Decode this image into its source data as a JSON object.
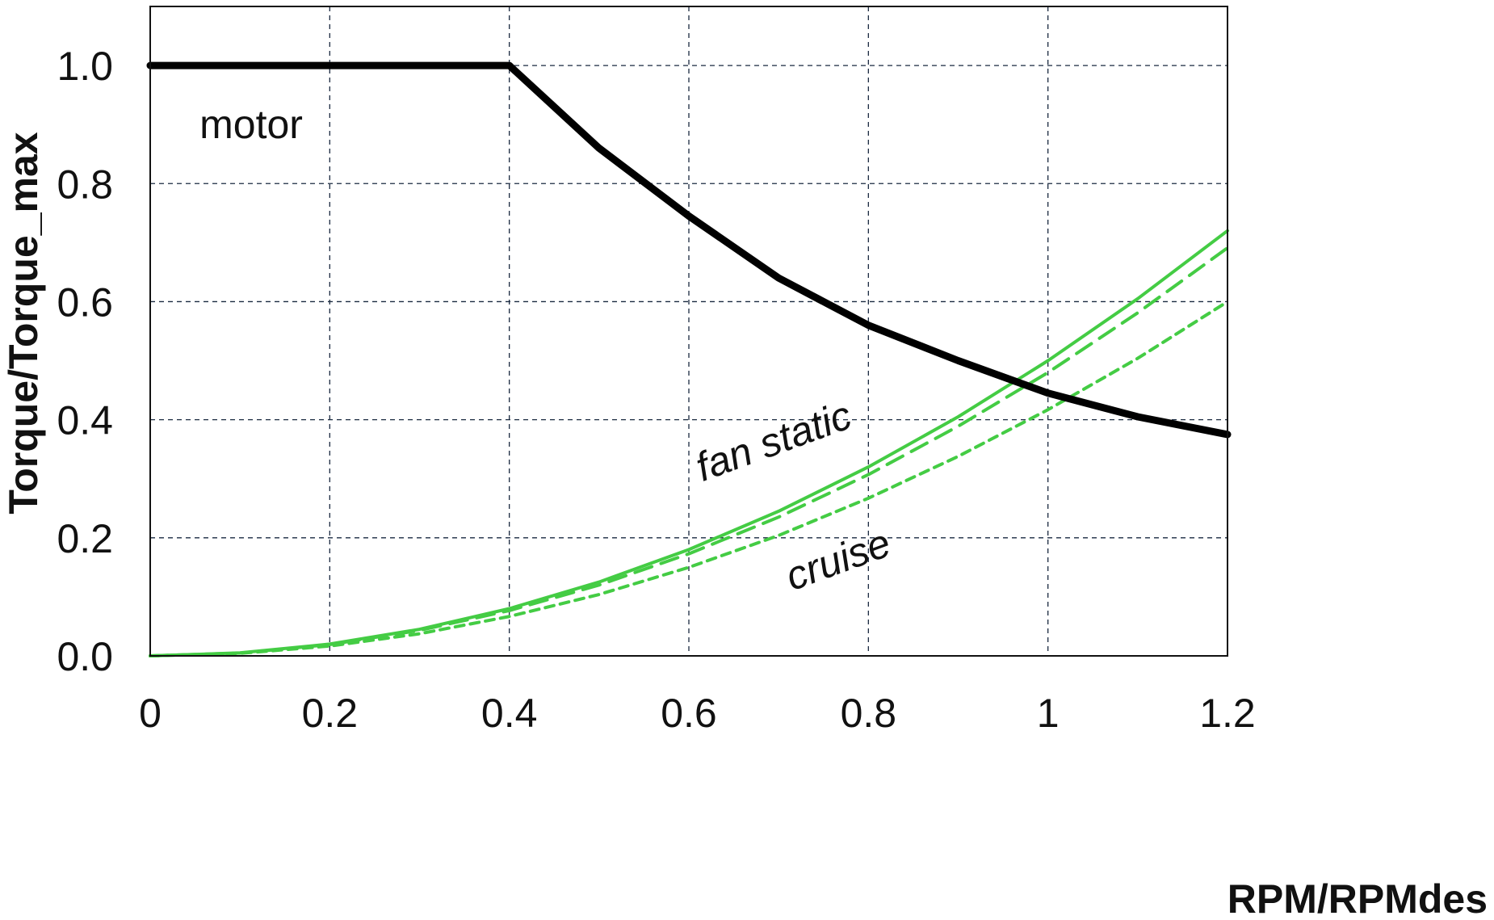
{
  "chart_data": {
    "type": "line",
    "title": "",
    "xlabel": "RPM/RPMdes",
    "ylabel": "Torque/Torque_max",
    "xlim": [
      0,
      1.2
    ],
    "ylim": [
      0,
      1.1
    ],
    "x_ticks": [
      "0",
      "0.2",
      "0.4",
      "0.6",
      "0.8",
      "1",
      "1.2"
    ],
    "y_ticks": [
      "0.0",
      "0.2",
      "0.4",
      "0.6",
      "0.8",
      "1.0"
    ],
    "grid": true,
    "colors": {
      "motor": "#000000",
      "fan": "#44cc44"
    },
    "series": [
      {
        "line": "motor",
        "style": "solid-thick",
        "x": [
          0,
          0.4,
          0.5,
          0.6,
          0.7,
          0.8,
          0.9,
          1.0,
          1.1,
          1.2
        ],
        "y": [
          1.0,
          1.0,
          0.86,
          0.745,
          0.64,
          0.56,
          0.5,
          0.445,
          0.405,
          0.375
        ]
      },
      {
        "line": "fan-solid",
        "style": "solid",
        "x": [
          0,
          0.1,
          0.2,
          0.3,
          0.4,
          0.5,
          0.6,
          0.7,
          0.8,
          0.9,
          1.0,
          1.1,
          1.2
        ],
        "y": [
          0,
          0.005,
          0.02,
          0.045,
          0.08,
          0.125,
          0.18,
          0.245,
          0.32,
          0.405,
          0.5,
          0.605,
          0.72
        ]
      },
      {
        "line": "fan-long-dash",
        "style": "long-dash",
        "x": [
          0,
          0.1,
          0.2,
          0.3,
          0.4,
          0.5,
          0.6,
          0.7,
          0.8,
          0.9,
          1.0,
          1.1,
          1.2
        ],
        "y": [
          0,
          0.0048,
          0.0192,
          0.0432,
          0.0768,
          0.12,
          0.173,
          0.235,
          0.307,
          0.389,
          0.48,
          0.581,
          0.691
        ]
      },
      {
        "line": "fan-short-dash",
        "style": "short-dash",
        "x": [
          0,
          0.1,
          0.2,
          0.3,
          0.4,
          0.5,
          0.6,
          0.7,
          0.8,
          0.9,
          1.0,
          1.1,
          1.2
        ],
        "y": [
          0,
          0.0042,
          0.0167,
          0.0375,
          0.0667,
          0.104,
          0.15,
          0.204,
          0.267,
          0.338,
          0.417,
          0.504,
          0.6
        ]
      }
    ],
    "annotations": {
      "motor": {
        "text": "motor",
        "x": 0.055,
        "y": 0.9
      },
      "fan_static": {
        "text": "fan static",
        "x": 0.615,
        "y": 0.295
      },
      "cruise": {
        "text": "cruise",
        "x": 0.715,
        "y": 0.11
      }
    }
  }
}
